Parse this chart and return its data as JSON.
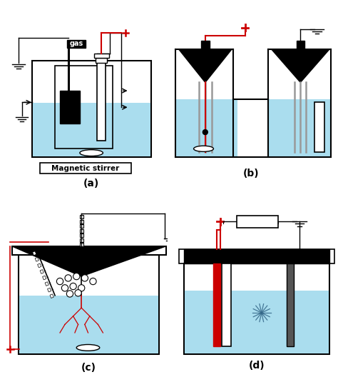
{
  "bg_color": "#ffffff",
  "water_color": "#aaddee",
  "black": "#000000",
  "red": "#cc0000",
  "dark_gray": "#555555",
  "label_a": "(a)",
  "label_b": "(b)",
  "label_c": "(c)",
  "label_d": "(d)",
  "mag_stirrer_label": "Magnetic stirrer",
  "gas_label": "gas",
  "font_size_label": 10,
  "font_size_small": 7
}
